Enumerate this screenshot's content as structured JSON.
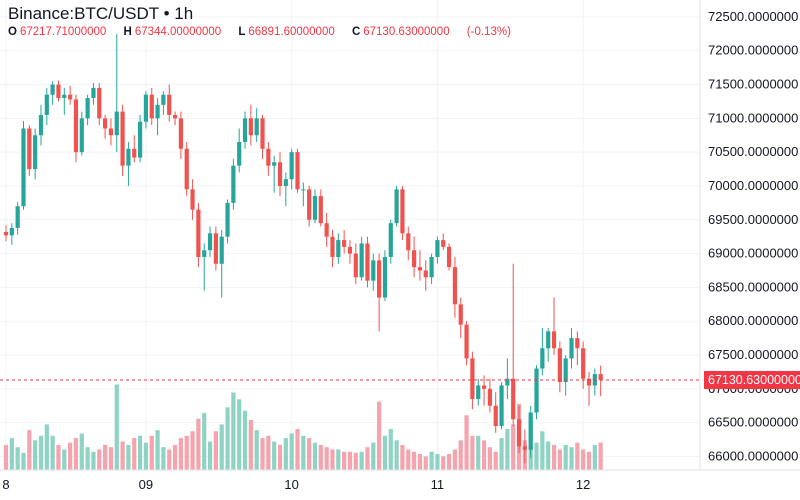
{
  "header": {
    "title": "Binance:BTC/USDT • 1h",
    "ohlc": [
      {
        "key": "O",
        "value": "67217.71000000"
      },
      {
        "key": "H",
        "value": "67344.00000000"
      },
      {
        "key": "L",
        "value": "66891.60000000"
      },
      {
        "key": "C",
        "value": "67130.63000000"
      }
    ],
    "change": "(-0.13%)"
  },
  "last_price_label": "67130.63000000",
  "colors": {
    "up": "#26a69a",
    "down": "#ef5350",
    "up_volume": "#8fd3c4",
    "down_volume": "#f5a3ac",
    "price_line": "#f23645",
    "grid": "#f0f3fa"
  },
  "chart_data": {
    "type": "candlestick",
    "y_ticks": [
      "72500.0000000",
      "72000.0000000",
      "71500.0000000",
      "71000.0000000",
      "70500.0000000",
      "70000.0000000",
      "69500.0000000",
      "69000.0000000",
      "68500.0000000",
      "68000.0000000",
      "67500.0000000",
      "67000.0000000",
      "66500.0000000",
      "66000.0000000"
    ],
    "y_tick_values": [
      72500,
      72000,
      71500,
      71000,
      70500,
      70000,
      69500,
      69000,
      68500,
      68000,
      67500,
      67000,
      66500,
      66000
    ],
    "ylim": [
      65800,
      72750
    ],
    "x_ticks": [
      {
        "label": "8",
        "index": 0
      },
      {
        "label": "09",
        "index": 24
      },
      {
        "label": "10",
        "index": 49
      },
      {
        "label": "11",
        "index": 74
      },
      {
        "label": "12",
        "index": 99
      }
    ],
    "last_close": 67130.63,
    "candles": [
      {
        "o": 69320,
        "h": 69420,
        "l": 69180,
        "c": 69270
      },
      {
        "o": 69270,
        "h": 69450,
        "l": 69130,
        "c": 69380
      },
      {
        "o": 69380,
        "h": 69760,
        "l": 69280,
        "c": 69700
      },
      {
        "o": 69700,
        "h": 70960,
        "l": 69650,
        "c": 70850
      },
      {
        "o": 70850,
        "h": 70900,
        "l": 70150,
        "c": 70250
      },
      {
        "o": 70250,
        "h": 70850,
        "l": 70100,
        "c": 70750
      },
      {
        "o": 70750,
        "h": 71200,
        "l": 70600,
        "c": 71050
      },
      {
        "o": 71050,
        "h": 71450,
        "l": 70900,
        "c": 71350
      },
      {
        "o": 71350,
        "h": 71550,
        "l": 71200,
        "c": 71500
      },
      {
        "o": 71500,
        "h": 71560,
        "l": 71250,
        "c": 71300
      },
      {
        "o": 71300,
        "h": 71450,
        "l": 71050,
        "c": 71350
      },
      {
        "o": 71350,
        "h": 71480,
        "l": 71200,
        "c": 71280
      },
      {
        "o": 71280,
        "h": 71350,
        "l": 70350,
        "c": 70500
      },
      {
        "o": 70500,
        "h": 71100,
        "l": 70450,
        "c": 71000
      },
      {
        "o": 71000,
        "h": 71350,
        "l": 70900,
        "c": 71300
      },
      {
        "o": 71300,
        "h": 71520,
        "l": 71200,
        "c": 71450
      },
      {
        "o": 71450,
        "h": 71520,
        "l": 70900,
        "c": 71000
      },
      {
        "o": 71000,
        "h": 71050,
        "l": 70700,
        "c": 70850
      },
      {
        "o": 70850,
        "h": 71000,
        "l": 70600,
        "c": 70750
      },
      {
        "o": 70750,
        "h": 72250,
        "l": 70500,
        "c": 71100
      },
      {
        "o": 71100,
        "h": 71200,
        "l": 70150,
        "c": 70300
      },
      {
        "o": 70300,
        "h": 70650,
        "l": 70000,
        "c": 70550
      },
      {
        "o": 70550,
        "h": 70750,
        "l": 70350,
        "c": 70420
      },
      {
        "o": 70420,
        "h": 71050,
        "l": 70350,
        "c": 70950
      },
      {
        "o": 70950,
        "h": 71400,
        "l": 70850,
        "c": 71350
      },
      {
        "o": 71350,
        "h": 71450,
        "l": 70900,
        "c": 71000
      },
      {
        "o": 71000,
        "h": 71300,
        "l": 70750,
        "c": 71200
      },
      {
        "o": 71200,
        "h": 71400,
        "l": 71050,
        "c": 71350
      },
      {
        "o": 71350,
        "h": 71500,
        "l": 70950,
        "c": 71050
      },
      {
        "o": 71050,
        "h": 71100,
        "l": 70900,
        "c": 71000
      },
      {
        "o": 71000,
        "h": 71100,
        "l": 70400,
        "c": 70550
      },
      {
        "o": 70550,
        "h": 70650,
        "l": 69850,
        "c": 69950
      },
      {
        "o": 69950,
        "h": 70100,
        "l": 69500,
        "c": 69650
      },
      {
        "o": 69650,
        "h": 69750,
        "l": 68800,
        "c": 68950
      },
      {
        "o": 68950,
        "h": 69150,
        "l": 68450,
        "c": 69050
      },
      {
        "o": 69050,
        "h": 69400,
        "l": 68950,
        "c": 69300
      },
      {
        "o": 69300,
        "h": 69400,
        "l": 68750,
        "c": 68850
      },
      {
        "o": 68850,
        "h": 69350,
        "l": 68350,
        "c": 69250
      },
      {
        "o": 69250,
        "h": 69800,
        "l": 69150,
        "c": 69750
      },
      {
        "o": 69750,
        "h": 70400,
        "l": 69650,
        "c": 70300
      },
      {
        "o": 70300,
        "h": 70850,
        "l": 70200,
        "c": 70650
      },
      {
        "o": 70650,
        "h": 71100,
        "l": 70550,
        "c": 71000
      },
      {
        "o": 71000,
        "h": 71200,
        "l": 70600,
        "c": 70750
      },
      {
        "o": 70750,
        "h": 71150,
        "l": 70650,
        "c": 71000
      },
      {
        "o": 71000,
        "h": 71050,
        "l": 70400,
        "c": 70550
      },
      {
        "o": 70550,
        "h": 70650,
        "l": 70150,
        "c": 70300
      },
      {
        "o": 70300,
        "h": 70450,
        "l": 69900,
        "c": 70350
      },
      {
        "o": 70350,
        "h": 70500,
        "l": 69850,
        "c": 70000
      },
      {
        "o": 70000,
        "h": 70200,
        "l": 69700,
        "c": 70100
      },
      {
        "o": 70100,
        "h": 70550,
        "l": 69950,
        "c": 70500
      },
      {
        "o": 70500,
        "h": 70550,
        "l": 69900,
        "c": 69950
      },
      {
        "o": 69950,
        "h": 70050,
        "l": 69700,
        "c": 69950
      },
      {
        "o": 69950,
        "h": 70000,
        "l": 69400,
        "c": 69500
      },
      {
        "o": 69500,
        "h": 69950,
        "l": 69450,
        "c": 69850
      },
      {
        "o": 69850,
        "h": 69950,
        "l": 69400,
        "c": 69450
      },
      {
        "o": 69450,
        "h": 69600,
        "l": 69100,
        "c": 69250
      },
      {
        "o": 69250,
        "h": 69350,
        "l": 68800,
        "c": 68950
      },
      {
        "o": 68950,
        "h": 69300,
        "l": 68850,
        "c": 69200
      },
      {
        "o": 69200,
        "h": 69350,
        "l": 69000,
        "c": 69100
      },
      {
        "o": 69100,
        "h": 69200,
        "l": 68850,
        "c": 69000
      },
      {
        "o": 69000,
        "h": 69150,
        "l": 68550,
        "c": 68650
      },
      {
        "o": 68650,
        "h": 69250,
        "l": 68600,
        "c": 69150
      },
      {
        "o": 69150,
        "h": 69250,
        "l": 68500,
        "c": 68600
      },
      {
        "o": 68600,
        "h": 69000,
        "l": 68450,
        "c": 68900
      },
      {
        "o": 68900,
        "h": 69000,
        "l": 67850,
        "c": 68350
      },
      {
        "o": 68350,
        "h": 69050,
        "l": 68300,
        "c": 68950
      },
      {
        "o": 68950,
        "h": 69500,
        "l": 68850,
        "c": 69450
      },
      {
        "o": 69450,
        "h": 70000,
        "l": 69400,
        "c": 69950
      },
      {
        "o": 69950,
        "h": 70000,
        "l": 69200,
        "c": 69300
      },
      {
        "o": 69300,
        "h": 69400,
        "l": 68900,
        "c": 69050
      },
      {
        "o": 69050,
        "h": 69250,
        "l": 68650,
        "c": 68800
      },
      {
        "o": 68800,
        "h": 69050,
        "l": 68600,
        "c": 68750
      },
      {
        "o": 68750,
        "h": 68900,
        "l": 68450,
        "c": 68650
      },
      {
        "o": 68650,
        "h": 69000,
        "l": 68550,
        "c": 68950
      },
      {
        "o": 68950,
        "h": 69250,
        "l": 68850,
        "c": 69200
      },
      {
        "o": 69200,
        "h": 69300,
        "l": 69050,
        "c": 69100
      },
      {
        "o": 69100,
        "h": 69150,
        "l": 68750,
        "c": 68800
      },
      {
        "o": 68800,
        "h": 68950,
        "l": 68050,
        "c": 68250
      },
      {
        "o": 68250,
        "h": 68350,
        "l": 67750,
        "c": 67950
      },
      {
        "o": 67950,
        "h": 68000,
        "l": 67350,
        "c": 67450
      },
      {
        "o": 67450,
        "h": 67550,
        "l": 66700,
        "c": 66850
      },
      {
        "o": 66850,
        "h": 67150,
        "l": 66750,
        "c": 67050
      },
      {
        "o": 67050,
        "h": 67200,
        "l": 66750,
        "c": 67000
      },
      {
        "o": 67000,
        "h": 67150,
        "l": 66650,
        "c": 66750
      },
      {
        "o": 66750,
        "h": 66950,
        "l": 66350,
        "c": 66450
      },
      {
        "o": 66450,
        "h": 67100,
        "l": 66400,
        "c": 67050
      },
      {
        "o": 67050,
        "h": 67450,
        "l": 66850,
        "c": 67150
      },
      {
        "o": 67150,
        "h": 68850,
        "l": 66450,
        "c": 66550
      },
      {
        "o": 66550,
        "h": 66750,
        "l": 66050,
        "c": 66150
      },
      {
        "o": 66150,
        "h": 66400,
        "l": 65900,
        "c": 66100
      },
      {
        "o": 66100,
        "h": 66750,
        "l": 65980,
        "c": 66650
      },
      {
        "o": 66650,
        "h": 67350,
        "l": 66550,
        "c": 67300
      },
      {
        "o": 67300,
        "h": 67900,
        "l": 67200,
        "c": 67600
      },
      {
        "o": 67600,
        "h": 67900,
        "l": 67400,
        "c": 67850
      },
      {
        "o": 67850,
        "h": 68350,
        "l": 67500,
        "c": 67600
      },
      {
        "o": 67600,
        "h": 67700,
        "l": 66950,
        "c": 67100
      },
      {
        "o": 67100,
        "h": 67500,
        "l": 66900,
        "c": 67450
      },
      {
        "o": 67450,
        "h": 67900,
        "l": 67300,
        "c": 67750
      },
      {
        "o": 67750,
        "h": 67850,
        "l": 67350,
        "c": 67600
      },
      {
        "o": 67600,
        "h": 67700,
        "l": 67000,
        "c": 67150
      },
      {
        "o": 67150,
        "h": 67250,
        "l": 66750,
        "c": 67050
      },
      {
        "o": 67050,
        "h": 67300,
        "l": 66900,
        "c": 67217.71
      },
      {
        "o": 67217.71,
        "h": 67344.0,
        "l": 66891.6,
        "c": 67130.63
      }
    ],
    "volumes": [
      22,
      28,
      20,
      15,
      35,
      26,
      30,
      40,
      30,
      22,
      18,
      24,
      28,
      32,
      20,
      16,
      18,
      22,
      20,
      75,
      25,
      22,
      28,
      30,
      24,
      30,
      35,
      20,
      18,
      22,
      28,
      30,
      34,
      45,
      50,
      25,
      34,
      40,
      55,
      68,
      62,
      52,
      44,
      35,
      28,
      30,
      25,
      22,
      28,
      32,
      36,
      30,
      28,
      24,
      22,
      20,
      18,
      18,
      16,
      16,
      15,
      16,
      20,
      24,
      60,
      30,
      36,
      26,
      22,
      18,
      16,
      14,
      12,
      16,
      14,
      12,
      14,
      18,
      26,
      48,
      30,
      30,
      26,
      20,
      16,
      28,
      36,
      40,
      58,
      26,
      46,
      24,
      34,
      25,
      22,
      18,
      22,
      20,
      24,
      18,
      16,
      22,
      24
    ],
    "volumes_unit_note": ""
  }
}
